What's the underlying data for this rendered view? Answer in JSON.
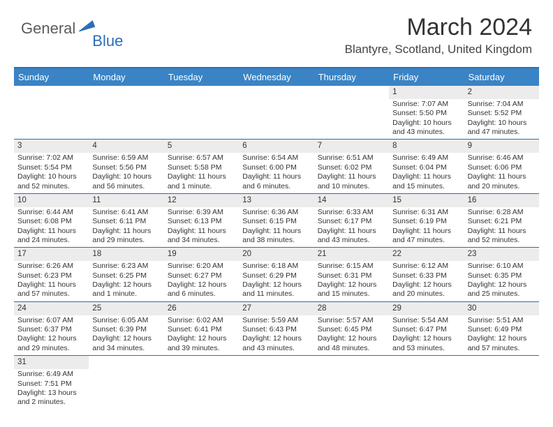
{
  "logo": {
    "part1": "General",
    "part2": "Blue"
  },
  "title": "March 2024",
  "location": "Blantyre, Scotland, United Kingdom",
  "colors": {
    "header_bg": "#3a84c5",
    "border": "#2d6eb5",
    "daynum_bg": "#ececec",
    "text": "#333333",
    "logo_gray": "#5c5c5c",
    "logo_blue": "#2d6eb5"
  },
  "dayNames": [
    "Sunday",
    "Monday",
    "Tuesday",
    "Wednesday",
    "Thursday",
    "Friday",
    "Saturday"
  ],
  "weeks": [
    [
      null,
      null,
      null,
      null,
      null,
      {
        "n": "1",
        "sr": "7:07 AM",
        "ss": "5:50 PM",
        "dl": "10 hours and 43 minutes."
      },
      {
        "n": "2",
        "sr": "7:04 AM",
        "ss": "5:52 PM",
        "dl": "10 hours and 47 minutes."
      }
    ],
    [
      {
        "n": "3",
        "sr": "7:02 AM",
        "ss": "5:54 PM",
        "dl": "10 hours and 52 minutes."
      },
      {
        "n": "4",
        "sr": "6:59 AM",
        "ss": "5:56 PM",
        "dl": "10 hours and 56 minutes."
      },
      {
        "n": "5",
        "sr": "6:57 AM",
        "ss": "5:58 PM",
        "dl": "11 hours and 1 minute."
      },
      {
        "n": "6",
        "sr": "6:54 AM",
        "ss": "6:00 PM",
        "dl": "11 hours and 6 minutes."
      },
      {
        "n": "7",
        "sr": "6:51 AM",
        "ss": "6:02 PM",
        "dl": "11 hours and 10 minutes."
      },
      {
        "n": "8",
        "sr": "6:49 AM",
        "ss": "6:04 PM",
        "dl": "11 hours and 15 minutes."
      },
      {
        "n": "9",
        "sr": "6:46 AM",
        "ss": "6:06 PM",
        "dl": "11 hours and 20 minutes."
      }
    ],
    [
      {
        "n": "10",
        "sr": "6:44 AM",
        "ss": "6:08 PM",
        "dl": "11 hours and 24 minutes."
      },
      {
        "n": "11",
        "sr": "6:41 AM",
        "ss": "6:11 PM",
        "dl": "11 hours and 29 minutes."
      },
      {
        "n": "12",
        "sr": "6:39 AM",
        "ss": "6:13 PM",
        "dl": "11 hours and 34 minutes."
      },
      {
        "n": "13",
        "sr": "6:36 AM",
        "ss": "6:15 PM",
        "dl": "11 hours and 38 minutes."
      },
      {
        "n": "14",
        "sr": "6:33 AM",
        "ss": "6:17 PM",
        "dl": "11 hours and 43 minutes."
      },
      {
        "n": "15",
        "sr": "6:31 AM",
        "ss": "6:19 PM",
        "dl": "11 hours and 47 minutes."
      },
      {
        "n": "16",
        "sr": "6:28 AM",
        "ss": "6:21 PM",
        "dl": "11 hours and 52 minutes."
      }
    ],
    [
      {
        "n": "17",
        "sr": "6:26 AM",
        "ss": "6:23 PM",
        "dl": "11 hours and 57 minutes."
      },
      {
        "n": "18",
        "sr": "6:23 AM",
        "ss": "6:25 PM",
        "dl": "12 hours and 1 minute."
      },
      {
        "n": "19",
        "sr": "6:20 AM",
        "ss": "6:27 PM",
        "dl": "12 hours and 6 minutes."
      },
      {
        "n": "20",
        "sr": "6:18 AM",
        "ss": "6:29 PM",
        "dl": "12 hours and 11 minutes."
      },
      {
        "n": "21",
        "sr": "6:15 AM",
        "ss": "6:31 PM",
        "dl": "12 hours and 15 minutes."
      },
      {
        "n": "22",
        "sr": "6:12 AM",
        "ss": "6:33 PM",
        "dl": "12 hours and 20 minutes."
      },
      {
        "n": "23",
        "sr": "6:10 AM",
        "ss": "6:35 PM",
        "dl": "12 hours and 25 minutes."
      }
    ],
    [
      {
        "n": "24",
        "sr": "6:07 AM",
        "ss": "6:37 PM",
        "dl": "12 hours and 29 minutes."
      },
      {
        "n": "25",
        "sr": "6:05 AM",
        "ss": "6:39 PM",
        "dl": "12 hours and 34 minutes."
      },
      {
        "n": "26",
        "sr": "6:02 AM",
        "ss": "6:41 PM",
        "dl": "12 hours and 39 minutes."
      },
      {
        "n": "27",
        "sr": "5:59 AM",
        "ss": "6:43 PM",
        "dl": "12 hours and 43 minutes."
      },
      {
        "n": "28",
        "sr": "5:57 AM",
        "ss": "6:45 PM",
        "dl": "12 hours and 48 minutes."
      },
      {
        "n": "29",
        "sr": "5:54 AM",
        "ss": "6:47 PM",
        "dl": "12 hours and 53 minutes."
      },
      {
        "n": "30",
        "sr": "5:51 AM",
        "ss": "6:49 PM",
        "dl": "12 hours and 57 minutes."
      }
    ],
    [
      {
        "n": "31",
        "sr": "6:49 AM",
        "ss": "7:51 PM",
        "dl": "13 hours and 2 minutes."
      },
      null,
      null,
      null,
      null,
      null,
      null
    ]
  ],
  "labels": {
    "sunrise": "Sunrise:",
    "sunset": "Sunset:",
    "daylight": "Daylight:"
  }
}
